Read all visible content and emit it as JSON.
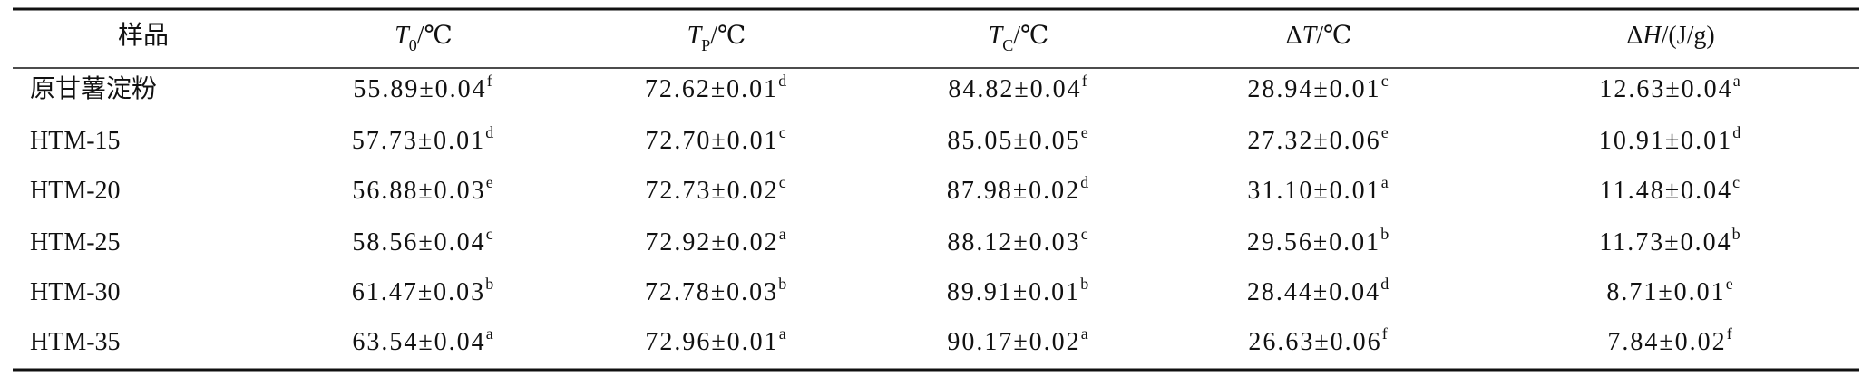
{
  "table": {
    "header": [
      {
        "text": "样品"
      },
      {
        "symbol": "T",
        "sub": "0",
        "unit": "/℃"
      },
      {
        "symbol": "T",
        "sub": "P",
        "unit": "/℃"
      },
      {
        "symbol": "T",
        "sub": "C",
        "unit": "/℃"
      },
      {
        "prefix": "Δ",
        "symbol": "T",
        "unit": "/℃"
      },
      {
        "prefix": "Δ",
        "symbol": "H",
        "unit": "/(J/g)"
      }
    ],
    "rows": [
      [
        {
          "text": "原甘薯淀粉"
        },
        {
          "text": "55.89±0.04",
          "sup": "f"
        },
        {
          "text": "72.62±0.01",
          "sup": "d"
        },
        {
          "text": "84.82±0.04",
          "sup": "f"
        },
        {
          "text": "28.94±0.01",
          "sup": "c"
        },
        {
          "text": "12.63±0.04",
          "sup": "a"
        }
      ],
      [
        {
          "text": "HTM-15"
        },
        {
          "text": "57.73±0.01",
          "sup": "d"
        },
        {
          "text": "72.70±0.01",
          "sup": "c"
        },
        {
          "text": "85.05±0.05",
          "sup": "e"
        },
        {
          "text": "27.32±0.06",
          "sup": "e"
        },
        {
          "text": "10.91±0.01",
          "sup": "d"
        }
      ],
      [
        {
          "text": "HTM-20"
        },
        {
          "text": "56.88±0.03",
          "sup": "e"
        },
        {
          "text": "72.73±0.02",
          "sup": "c"
        },
        {
          "text": "87.98±0.02",
          "sup": "d"
        },
        {
          "text": "31.10±0.01",
          "sup": "a"
        },
        {
          "text": "11.48±0.04",
          "sup": "c"
        }
      ],
      [
        {
          "text": "HTM-25"
        },
        {
          "text": "58.56±0.04",
          "sup": "c"
        },
        {
          "text": "72.92±0.02",
          "sup": "a"
        },
        {
          "text": "88.12±0.03",
          "sup": "c"
        },
        {
          "text": "29.56±0.01",
          "sup": "b"
        },
        {
          "text": "11.73±0.04",
          "sup": "b"
        }
      ],
      [
        {
          "text": "HTM-30"
        },
        {
          "text": "61.47±0.03",
          "sup": "b"
        },
        {
          "text": "72.78±0.03",
          "sup": "b"
        },
        {
          "text": "89.91±0.01",
          "sup": "b"
        },
        {
          "text": "28.44±0.04",
          "sup": "d"
        },
        {
          "text": "8.71±0.01",
          "sup": "e"
        }
      ],
      [
        {
          "text": "HTM-35"
        },
        {
          "text": "63.54±0.04",
          "sup": "a"
        },
        {
          "text": "72.96±0.01",
          "sup": "a"
        },
        {
          "text": "90.17±0.02",
          "sup": "a"
        },
        {
          "text": "26.63±0.06",
          "sup": "f"
        },
        {
          "text": "7.84±0.02",
          "sup": "f"
        }
      ]
    ]
  }
}
